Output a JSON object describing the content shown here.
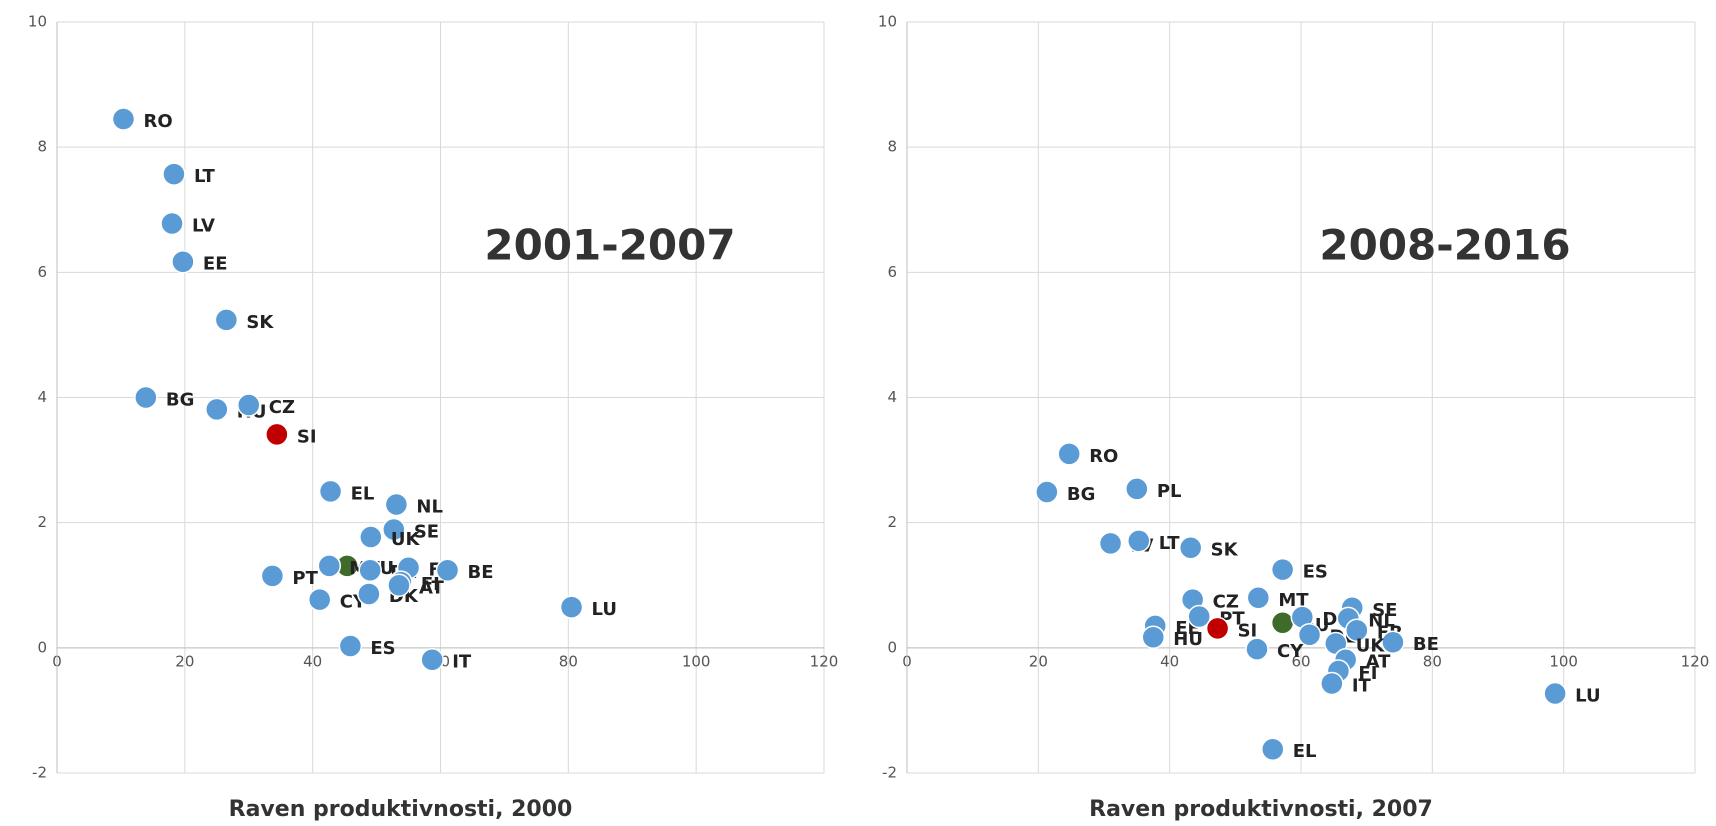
{
  "chart_data": [
    {
      "type": "scatter",
      "title": "2001-2007",
      "x_label": "Raven produktivnosti, 2000",
      "xlim": [
        0,
        120
      ],
      "xticks": [
        0,
        20,
        40,
        60,
        80,
        100,
        120
      ],
      "ylim": [
        -2,
        10
      ],
      "yticks": [
        -2,
        0,
        2,
        4,
        6,
        8,
        10
      ],
      "grid": true,
      "point_labels": [
        "RO",
        "LT",
        "LV",
        "EE",
        "SK",
        "BG",
        "HU",
        "CZ",
        "SI",
        "EL",
        "NL",
        "SE",
        "UK",
        "EU",
        "MT",
        "PT",
        "DE",
        "FR",
        "BE",
        "FI",
        "CY",
        "DK",
        "ES",
        "IT",
        "LU",
        "AT"
      ],
      "x": [
        10.4,
        18.3,
        18.0,
        19.7,
        26.5,
        13.9,
        25.0,
        30.0,
        34.4,
        42.8,
        53.1,
        52.7,
        49.1,
        45.4,
        42.6,
        33.7,
        49.0,
        55.0,
        61.1,
        53.8,
        41.1,
        48.8,
        45.9,
        58.7,
        80.5,
        53.5
      ],
      "values": [
        8.45,
        7.57,
        6.78,
        6.17,
        5.24,
        4.0,
        3.81,
        3.88,
        3.41,
        2.5,
        2.29,
        1.89,
        1.77,
        1.31,
        1.31,
        1.15,
        1.24,
        1.28,
        1.24,
        1.05,
        0.77,
        0.86,
        0.03,
        -0.19,
        0.65,
        1.0
      ],
      "point_colors": [
        "#5b9bd5",
        "#5b9bd5",
        "#5b9bd5",
        "#5b9bd5",
        "#5b9bd5",
        "#5b9bd5",
        "#5b9bd5",
        "#5b9bd5",
        "#c00000",
        "#5b9bd5",
        "#5b9bd5",
        "#5b9bd5",
        "#5b9bd5",
        "#3f6b2a",
        "#5b9bd5",
        "#5b9bd5",
        "#5b9bd5",
        "#5b9bd5",
        "#5b9bd5",
        "#5b9bd5",
        "#5b9bd5",
        "#5b9bd5",
        "#5b9bd5",
        "#5b9bd5",
        "#5b9bd5",
        "#5b9bd5"
      ]
    },
    {
      "type": "scatter",
      "title": "2008-2016",
      "x_label": "Raven produktivnosti, 2007",
      "xlim": [
        0,
        120
      ],
      "xticks": [
        0,
        20,
        40,
        60,
        80,
        100,
        120
      ],
      "ylim": [
        -2,
        10
      ],
      "yticks": [
        -2,
        0,
        2,
        4,
        6,
        8,
        10
      ],
      "grid": true,
      "point_labels": [
        "RO",
        "BG",
        "PL",
        "LV",
        "LT",
        "SK",
        "ES",
        "CZ",
        "MT",
        "EE",
        "HU",
        "PT",
        "SI",
        "EU",
        "DK",
        "SE",
        "NL",
        "DE",
        "FR",
        "BE",
        "CY",
        "UK",
        "AT",
        "FI",
        "IT",
        "LU",
        "EL"
      ],
      "x": [
        24.7,
        21.3,
        35.0,
        31.0,
        35.3,
        43.2,
        57.2,
        43.5,
        53.5,
        37.8,
        37.5,
        44.5,
        47.3,
        57.2,
        60.2,
        67.8,
        67.2,
        61.3,
        68.5,
        74.0,
        53.3,
        65.3,
        66.8,
        65.7,
        64.7,
        98.7,
        55.7
      ],
      "values": [
        3.1,
        2.49,
        2.54,
        1.67,
        1.71,
        1.6,
        1.25,
        0.77,
        0.8,
        0.35,
        0.17,
        0.5,
        0.31,
        0.4,
        0.49,
        0.64,
        0.47,
        0.21,
        0.28,
        0.09,
        -0.02,
        0.07,
        -0.19,
        -0.37,
        -0.57,
        -0.73,
        -1.62
      ],
      "point_colors": [
        "#5b9bd5",
        "#5b9bd5",
        "#5b9bd5",
        "#5b9bd5",
        "#5b9bd5",
        "#5b9bd5",
        "#5b9bd5",
        "#5b9bd5",
        "#5b9bd5",
        "#5b9bd5",
        "#5b9bd5",
        "#5b9bd5",
        "#c00000",
        "#3f6b2a",
        "#5b9bd5",
        "#5b9bd5",
        "#5b9bd5",
        "#5b9bd5",
        "#5b9bd5",
        "#5b9bd5",
        "#5b9bd5",
        "#5b9bd5",
        "#5b9bd5",
        "#5b9bd5",
        "#5b9bd5",
        "#5b9bd5",
        "#5b9bd5"
      ]
    }
  ]
}
